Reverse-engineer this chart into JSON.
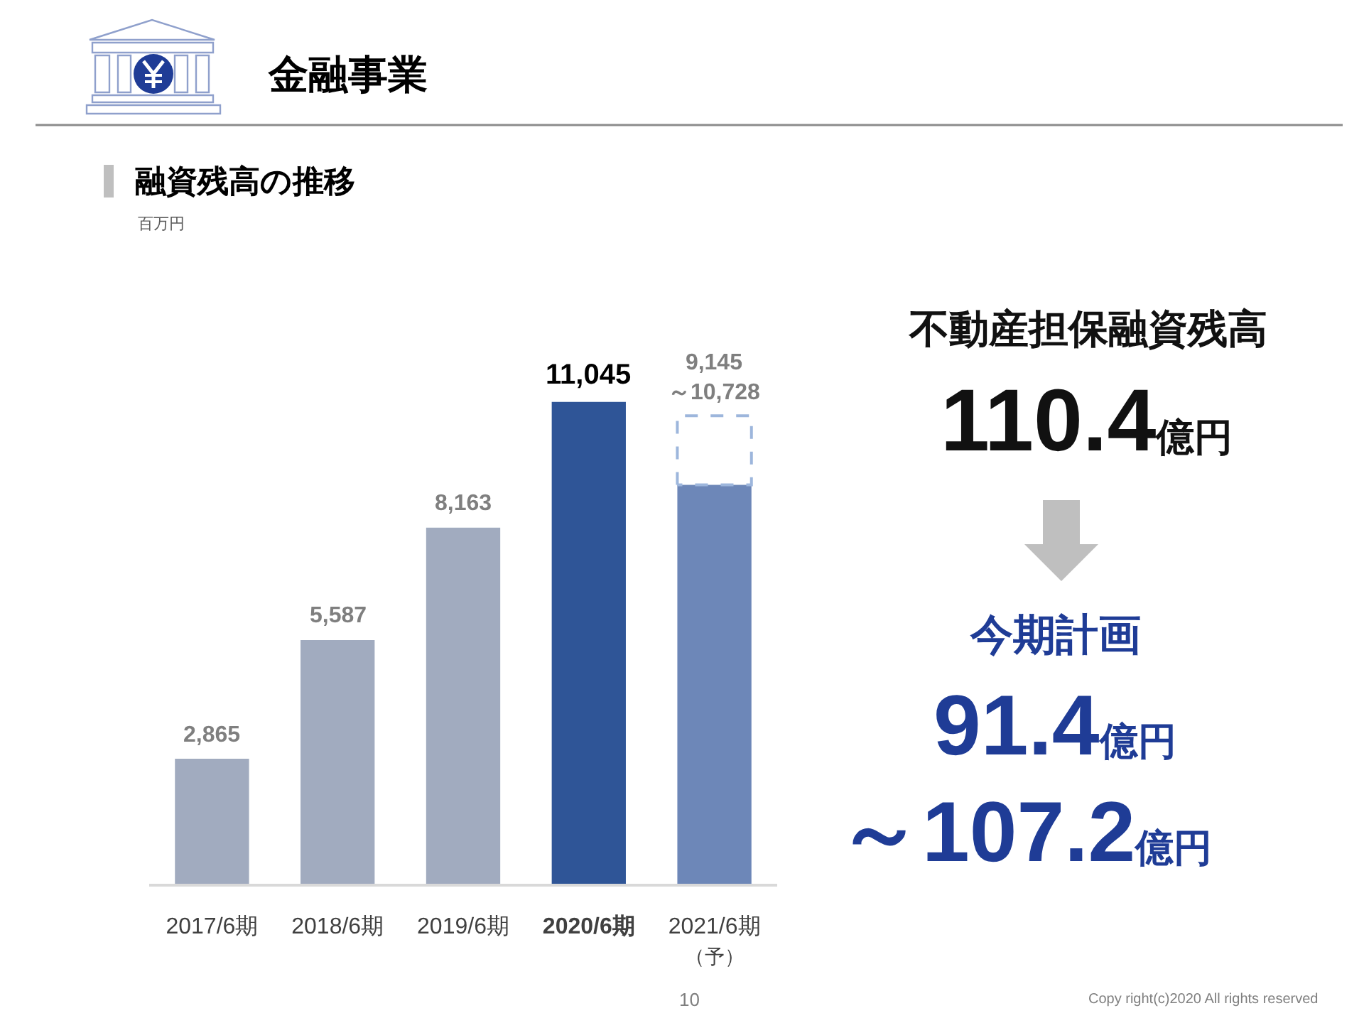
{
  "chart_data": {
    "type": "bar",
    "title": "金融事業",
    "subtitle": "融資残高の推移",
    "categories": [
      "2017/6期",
      "2018/6期",
      "2019/6期",
      "2020/6期",
      "2021/6期（予）"
    ],
    "stacked": true,
    "series": [
      {
        "colors": [
          "#a1abbf",
          "#a1abbf",
          "#a1abbf",
          "#2f5597",
          "#6d87b8"
        ],
        "values": [
          2865,
          5587,
          8163,
          11045,
          9145
        ],
        "value_labels": [
          "2,865",
          "5,587",
          "8,163",
          "11,045",
          null
        ]
      },
      {
        "color": "#9db6dc",
        "line_style": "dashed",
        "values": [
          null,
          null,
          null,
          null,
          1583
        ]
      }
    ],
    "annotations": [
      "百万円",
      {
        "text": "9,145\n～10,728",
        "x": "2021/6期（予）",
        "y": 10728
      },
      "不動産担保融資残高",
      "110.4億円",
      "今期計画",
      "91.4億円",
      "～107.2億円",
      "10",
      "Copy right(c)2020 All rights reserved"
    ]
  }
}
